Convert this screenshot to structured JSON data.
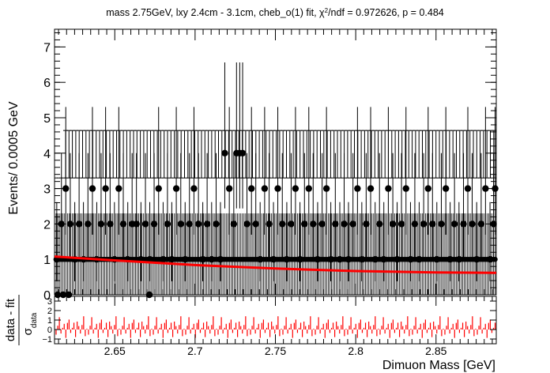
{
  "chart_data": [
    {
      "type": "scatter",
      "title": "mass 2.75GeV, lxy 2.4cm - 3.1cm, cheb_o(1) fit, χ²/ndf = 0.972626, p = 0.484",
      "title_parts": {
        "main": "mass 2.75GeV, lxy 2.4cm - 3.1cm, cheb_o(1) fit, χ",
        "sup": "2",
        "rest": "/ndf = 0.972626, p = 0.484"
      },
      "ylabel": "Events/ 0.0005 GeV",
      "xlim": [
        2.6125,
        2.8875
      ],
      "ylim": [
        0,
        7.5
      ],
      "y_ticks": [
        0,
        1,
        2,
        3,
        4,
        5,
        6,
        7
      ],
      "y_tick_labels": [
        "0",
        "1",
        "2",
        "3",
        "4",
        "5",
        "6",
        "7"
      ],
      "bin_width": 0.0005,
      "series": [
        {
          "points": [
            {
              "x": 2.6139,
              "y": 1
            },
            {
              "x": 2.6168,
              "y": 2
            },
            {
              "x": 2.6195,
              "y": 3
            },
            {
              "x": 2.6223,
              "y": 2
            },
            {
              "x": 2.6251,
              "y": 1
            },
            {
              "x": 2.6278,
              "y": 2
            },
            {
              "x": 2.6305,
              "y": 1
            },
            {
              "x": 2.6333,
              "y": 2
            },
            {
              "x": 2.6361,
              "y": 3
            },
            {
              "x": 2.6388,
              "y": 1
            },
            {
              "x": 2.6415,
              "y": 2
            },
            {
              "x": 2.6443,
              "y": 3
            },
            {
              "x": 2.6471,
              "y": 2
            },
            {
              "x": 2.6498,
              "y": 1
            },
            {
              "x": 2.6525,
              "y": 3
            },
            {
              "x": 2.6553,
              "y": 2
            },
            {
              "x": 2.6581,
              "y": 1
            },
            {
              "x": 2.6608,
              "y": 2
            },
            {
              "x": 2.6635,
              "y": 2
            },
            {
              "x": 2.6663,
              "y": 1
            },
            {
              "x": 2.6691,
              "y": 2
            },
            {
              "x": 2.6718,
              "y": 1
            },
            {
              "x": 2.6745,
              "y": 2
            },
            {
              "x": 2.6773,
              "y": 3
            },
            {
              "x": 2.6801,
              "y": 1
            },
            {
              "x": 2.6828,
              "y": 2
            },
            {
              "x": 2.6855,
              "y": 1
            },
            {
              "x": 2.6883,
              "y": 3
            },
            {
              "x": 2.6911,
              "y": 2
            },
            {
              "x": 2.6938,
              "y": 1
            },
            {
              "x": 2.6965,
              "y": 2
            },
            {
              "x": 2.6993,
              "y": 3
            },
            {
              "x": 2.7021,
              "y": 2
            },
            {
              "x": 2.7048,
              "y": 1
            },
            {
              "x": 2.7075,
              "y": 2
            },
            {
              "x": 2.7103,
              "y": 1
            },
            {
              "x": 2.7131,
              "y": 2
            },
            {
              "x": 2.7158,
              "y": 1
            },
            {
              "x": 2.7185,
              "y": 4
            },
            {
              "x": 2.7213,
              "y": 3
            },
            {
              "x": 2.7241,
              "y": 2
            },
            {
              "x": 2.7258,
              "y": 4
            },
            {
              "x": 2.7278,
              "y": 4
            },
            {
              "x": 2.7296,
              "y": 4
            },
            {
              "x": 2.7323,
              "y": 2
            },
            {
              "x": 2.7351,
              "y": 3
            },
            {
              "x": 2.7378,
              "y": 2
            },
            {
              "x": 2.7405,
              "y": 1
            },
            {
              "x": 2.7433,
              "y": 3
            },
            {
              "x": 2.7461,
              "y": 2
            },
            {
              "x": 2.7488,
              "y": 1
            },
            {
              "x": 2.7515,
              "y": 3
            },
            {
              "x": 2.7543,
              "y": 2
            },
            {
              "x": 2.7571,
              "y": 1
            },
            {
              "x": 2.7598,
              "y": 2
            },
            {
              "x": 2.7625,
              "y": 3
            },
            {
              "x": 2.7653,
              "y": 1
            },
            {
              "x": 2.7681,
              "y": 2
            },
            {
              "x": 2.7708,
              "y": 3
            },
            {
              "x": 2.7735,
              "y": 2
            },
            {
              "x": 2.7763,
              "y": 1
            },
            {
              "x": 2.7791,
              "y": 2
            },
            {
              "x": 2.7818,
              "y": 3
            },
            {
              "x": 2.7845,
              "y": 1
            },
            {
              "x": 2.7873,
              "y": 2
            },
            {
              "x": 2.7901,
              "y": 1
            },
            {
              "x": 2.7928,
              "y": 2
            },
            {
              "x": 2.7955,
              "y": 1
            },
            {
              "x": 2.7983,
              "y": 2
            },
            {
              "x": 2.8011,
              "y": 3
            },
            {
              "x": 2.8038,
              "y": 1
            },
            {
              "x": 2.8065,
              "y": 2
            },
            {
              "x": 2.8093,
              "y": 3
            },
            {
              "x": 2.8121,
              "y": 1
            },
            {
              "x": 2.8148,
              "y": 2
            },
            {
              "x": 2.8175,
              "y": 1
            },
            {
              "x": 2.8203,
              "y": 3
            },
            {
              "x": 2.8231,
              "y": 2
            },
            {
              "x": 2.8258,
              "y": 1
            },
            {
              "x": 2.8285,
              "y": 2
            },
            {
              "x": 2.8313,
              "y": 3
            },
            {
              "x": 2.8341,
              "y": 1
            },
            {
              "x": 2.8368,
              "y": 2
            },
            {
              "x": 2.8395,
              "y": 1
            },
            {
              "x": 2.8423,
              "y": 2
            },
            {
              "x": 2.8451,
              "y": 3
            },
            {
              "x": 2.8478,
              "y": 2
            },
            {
              "x": 2.8505,
              "y": 1
            },
            {
              "x": 2.8533,
              "y": 2
            },
            {
              "x": 2.8561,
              "y": 3
            },
            {
              "x": 2.8588,
              "y": 1
            },
            {
              "x": 2.8615,
              "y": 2
            },
            {
              "x": 2.8643,
              "y": 1
            },
            {
              "x": 2.8671,
              "y": 2
            },
            {
              "x": 2.8698,
              "y": 3
            },
            {
              "x": 2.8725,
              "y": 2
            },
            {
              "x": 2.8753,
              "y": 1
            },
            {
              "x": 2.8781,
              "y": 2
            },
            {
              "x": 2.8808,
              "y": 3
            },
            {
              "x": 2.8836,
              "y": 1
            },
            {
              "x": 2.8858,
              "y": 2
            },
            {
              "x": 2.8868,
              "y": 3
            }
          ],
          "color": "#000000"
        },
        {
          "type": "line",
          "x": [
            2.6125,
            2.65,
            2.7,
            2.75,
            2.8,
            2.85,
            2.8875
          ],
          "values": [
            1.08,
            0.97,
            0.84,
            0.74,
            0.67,
            0.63,
            0.62
          ],
          "color": "#ff0000"
        }
      ]
    },
    {
      "type": "bar",
      "ylabel_numerator": "data - fit",
      "ylabel_denominator_symbol": "σ",
      "ylabel_denominator_subscript": "data",
      "xlabel": "Dimuon Mass [GeV]",
      "xlim": [
        2.6125,
        2.8875
      ],
      "ylim": [
        -1.5,
        3.5
      ],
      "x_ticks": [
        2.65,
        2.7,
        2.75,
        2.8,
        2.85
      ],
      "x_tick_labels": [
        "2.65",
        "2.7",
        "2.75",
        "2.8",
        "2.85"
      ],
      "y_tick_labels": [
        "3",
        "2",
        "1",
        "0",
        "−1"
      ],
      "pull_samples": [
        -0.9,
        0.5,
        1.3,
        -0.6,
        0.2,
        1.0,
        -1.1,
        0.7,
        1.5,
        -0.4,
        0.3,
        0.9,
        -0.8,
        1.2,
        0.4,
        -0.7,
        0.6,
        1.4,
        -1.0,
        0.1
      ],
      "color": "#ff0000"
    }
  ]
}
